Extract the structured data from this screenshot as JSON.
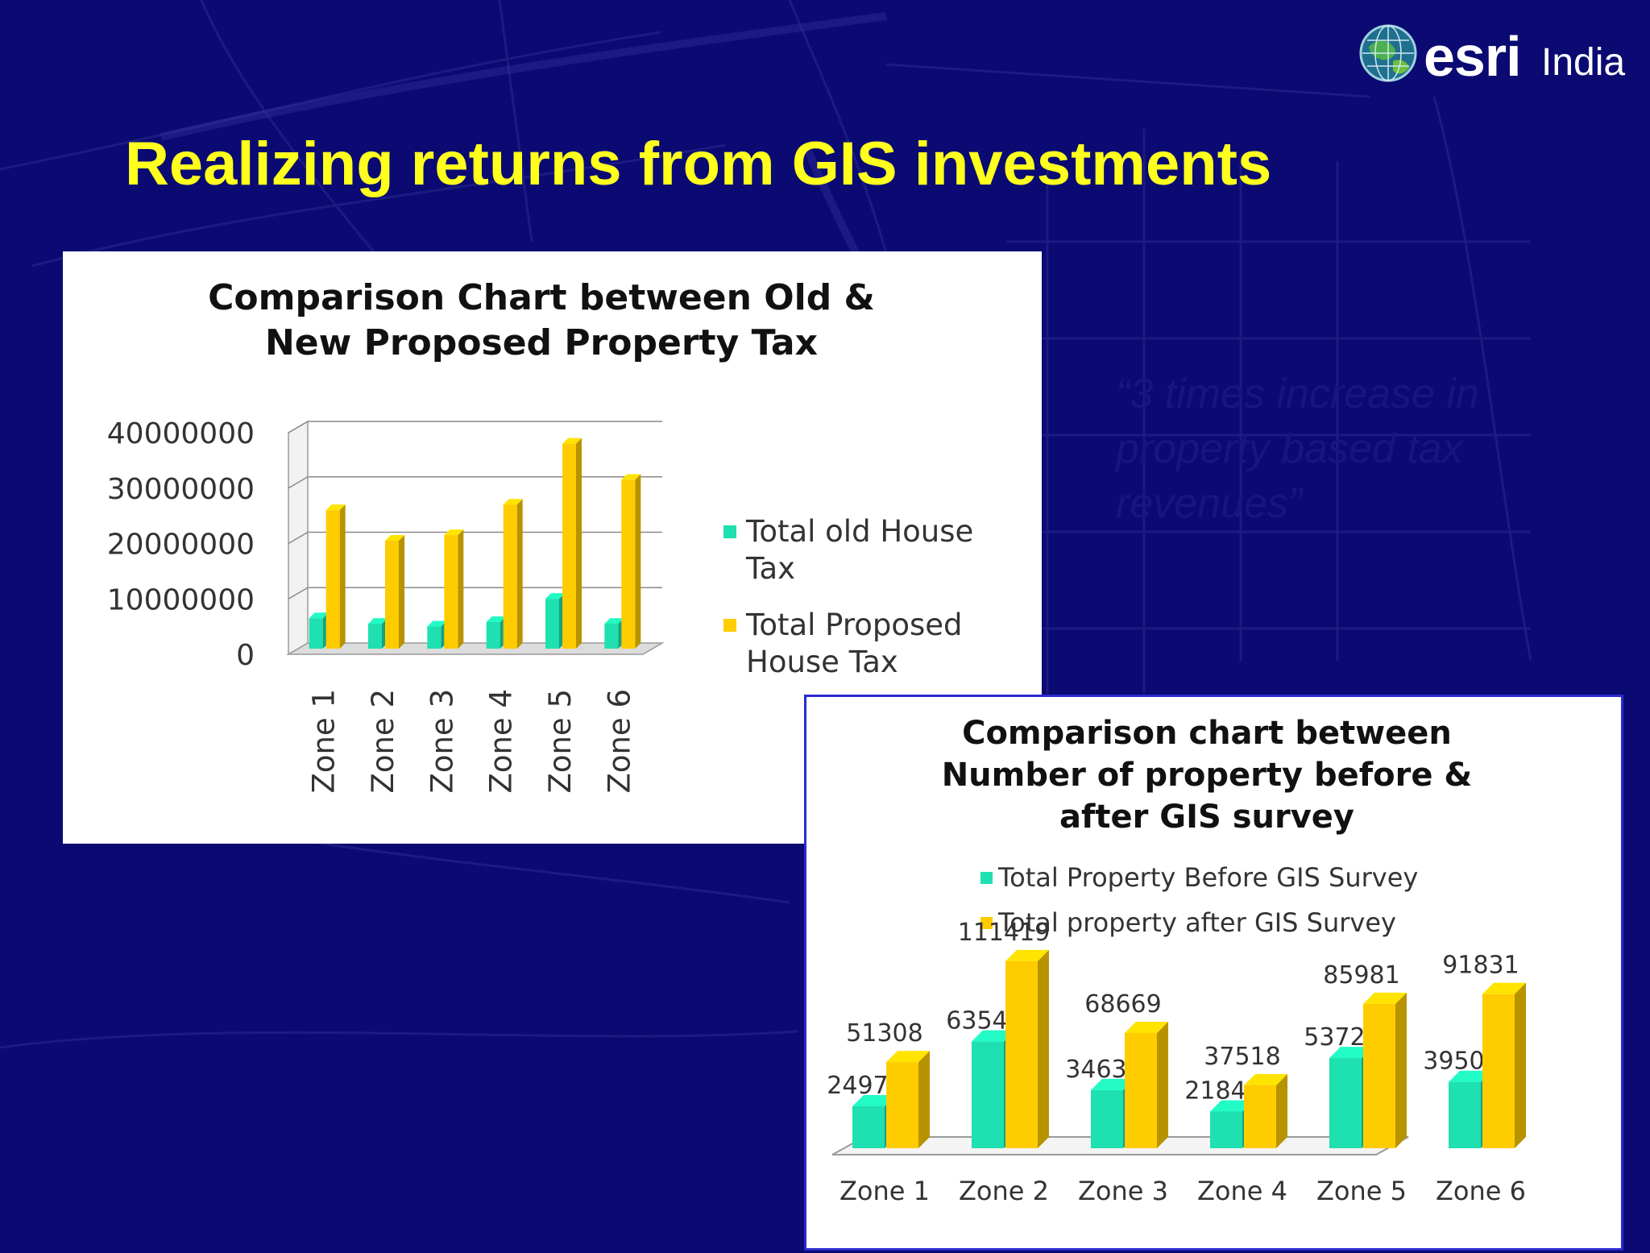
{
  "slide": {
    "title": "Realizing returns from GIS investments",
    "quote": "“3 times increase in property based  tax revenues”",
    "background_color": "#0a0a72",
    "title_color": "#ffff1e"
  },
  "logo": {
    "brand": "esri",
    "region": "India",
    "icon": "globe-icon"
  },
  "colors": {
    "old": "#1ee0b0",
    "new": "#ffcc00"
  },
  "chart_data": [
    {
      "type": "bar",
      "title_lines": [
        "Comparison Chart between Old &",
        "New Proposed Property Tax"
      ],
      "categories": [
        "Zone 1",
        "Zone 2",
        "Zone 3",
        "Zone 4",
        "Zone 5",
        "Zone 6"
      ],
      "series": [
        {
          "name": "Total old House Tax",
          "legend_lines": [
            "Total old House",
            "Tax"
          ],
          "values": [
            5500000,
            4500000,
            4000000,
            4800000,
            9000000,
            4500000
          ]
        },
        {
          "name": "Total Proposed House Tax",
          "legend_lines": [
            "Total Proposed",
            "House Tax"
          ],
          "values": [
            25000000,
            19500000,
            20500000,
            26000000,
            37000000,
            30500000
          ]
        }
      ],
      "ylim": [
        0,
        40000000
      ],
      "yticks": [
        "0",
        "10000000",
        "20000000",
        "30000000",
        "40000000"
      ],
      "grid": true,
      "legend_position": "right"
    },
    {
      "type": "bar",
      "title_lines": [
        "Comparison chart between",
        "Number of property before &",
        "after GIS survey"
      ],
      "categories": [
        "Zone 1",
        "Zone 2",
        "Zone 3",
        "Zone 4",
        "Zone 5",
        "Zone 6"
      ],
      "series": [
        {
          "name": "Total Property Before GIS Survey",
          "values": [
            24977,
            63542,
            34638,
            21844,
            53723,
            39504
          ],
          "labels": [
            "24977",
            "63542",
            "34638",
            "21844",
            "53723",
            "39504"
          ]
        },
        {
          "name": "Total property after GIS Survey",
          "values": [
            51308,
            111419,
            68669,
            37518,
            85981,
            91831
          ],
          "labels": [
            "51308",
            "111419",
            "68669",
            "37518",
            "85981",
            "91831"
          ]
        }
      ],
      "ylim": [
        0,
        120000
      ],
      "grid": false,
      "legend_position": "top"
    }
  ]
}
